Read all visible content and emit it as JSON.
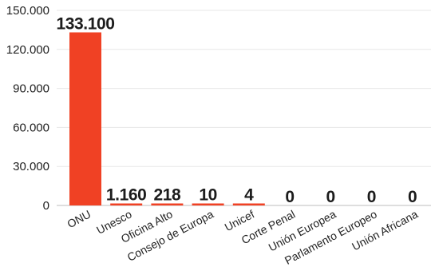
{
  "chart_data": {
    "type": "bar",
    "categories": [
      "ONU",
      "Unesco",
      "Oficina Alto",
      "Consejo de Europa",
      "Unicef",
      "Corte Penal",
      "Unión Europea",
      "Parlamento Europeo",
      "Unión Africana"
    ],
    "values": [
      133100,
      1160,
      218,
      10,
      4,
      0,
      0,
      0,
      0
    ],
    "value_labels": [
      "133.100",
      "1.160",
      "218",
      "10",
      "4",
      "0",
      "0",
      "0",
      "0"
    ],
    "yticks": [
      0,
      30000,
      60000,
      90000,
      120000,
      150000
    ],
    "ytick_labels": [
      "0",
      "30.000",
      "60.000",
      "90.000",
      "120.000",
      "150.000"
    ],
    "ylim": [
      0,
      150000
    ],
    "grid": true,
    "bar_color": "#f04124",
    "title": "",
    "xlabel": "",
    "ylabel": ""
  }
}
